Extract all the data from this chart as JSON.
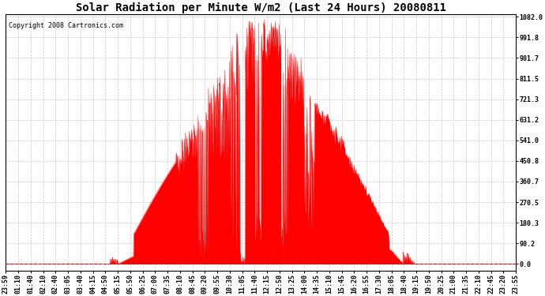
{
  "title": "Solar Radiation per Minute W/m2 (Last 24 Hours) 20080811",
  "copyright": "Copyright 2008 Cartronics.com",
  "yticks": [
    0.0,
    90.2,
    180.3,
    270.5,
    360.7,
    450.8,
    541.0,
    631.2,
    721.3,
    811.5,
    901.7,
    991.8,
    1082.0
  ],
  "ymax": 1082.0,
  "ymin": 0.0,
  "bar_color": "#FF0000",
  "background_color": "#FFFFFF",
  "grid_color": "#BBBBBB",
  "title_fontsize": 10,
  "copyright_fontsize": 6,
  "tick_fontsize": 6,
  "xtick_labels": [
    "23:59",
    "01:10",
    "01:40",
    "02:10",
    "02:40",
    "03:05",
    "03:40",
    "04:15",
    "04:50",
    "05:15",
    "05:50",
    "06:25",
    "07:00",
    "07:35",
    "08:10",
    "08:45",
    "09:20",
    "09:55",
    "10:30",
    "11:05",
    "11:40",
    "12:15",
    "12:50",
    "13:25",
    "14:00",
    "14:35",
    "15:10",
    "15:45",
    "16:20",
    "16:55",
    "17:30",
    "18:05",
    "18:40",
    "19:15",
    "19:50",
    "20:25",
    "21:00",
    "21:35",
    "22:10",
    "22:45",
    "23:20",
    "23:55"
  ]
}
